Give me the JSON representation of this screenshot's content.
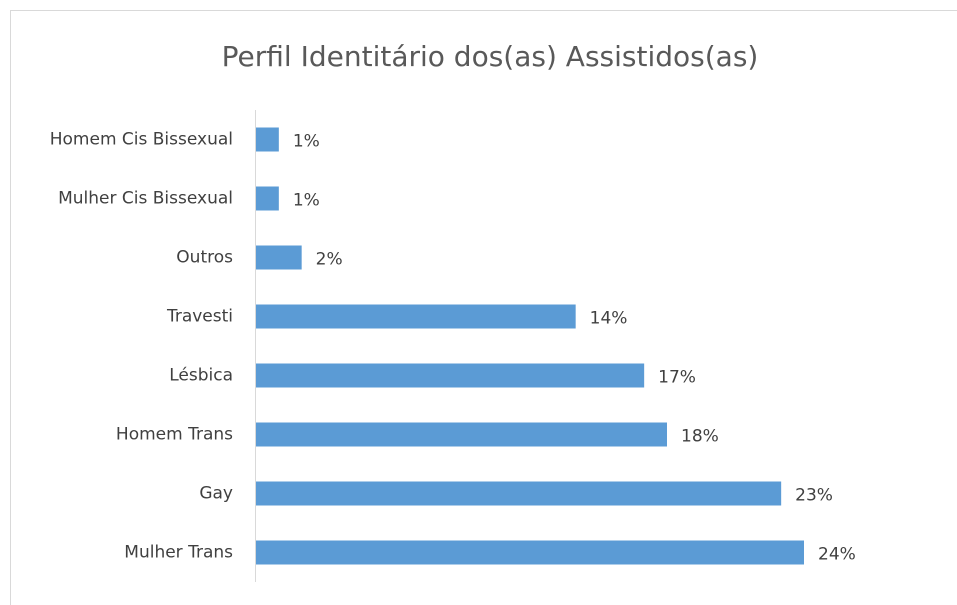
{
  "chart_data": {
    "type": "bar",
    "orientation": "horizontal",
    "title": "Perfil Identitário dos(as) Assistidos(as)",
    "categories": [
      "Homem Cis Bissexual",
      "Mulher Cis Bissexual",
      "Outros",
      "Travesti",
      "Lésbica",
      "Homem Trans",
      "Gay",
      "Mulher Trans"
    ],
    "values": [
      1,
      1,
      2,
      14,
      17,
      18,
      23,
      24
    ],
    "value_labels": [
      "1%",
      "1%",
      "2%",
      "14%",
      "17%",
      "18%",
      "23%",
      "24%"
    ],
    "color": "#5b9bd5"
  }
}
